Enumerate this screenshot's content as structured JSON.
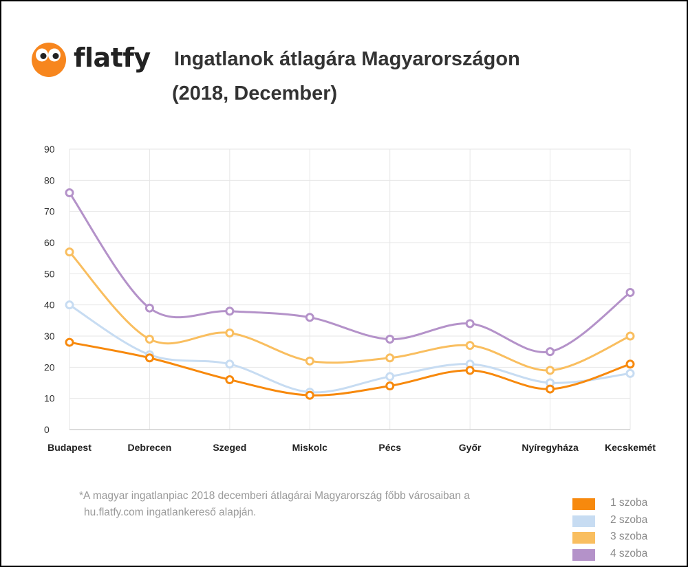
{
  "brand": {
    "logo_text": "flatfy"
  },
  "header": {
    "title": "Ingatlanok átlagára Magyarországon",
    "subtitle": "(2018, December)"
  },
  "chart_data": {
    "type": "line",
    "title": "Ingatlanok átlagára Magyarországon",
    "subtitle": "(2018, December)",
    "categories": [
      "Budapest",
      "Debrecen",
      "Szeged",
      "Miskolc",
      "Pécs",
      "Győr",
      "Nyíregyháza",
      "Kecskemét"
    ],
    "series": [
      {
        "name": "1 szoba",
        "color": "#f7890d",
        "values": [
          28,
          23,
          16,
          11,
          14,
          19,
          13,
          21
        ]
      },
      {
        "name": "2 szoba",
        "color": "#c7dcf2",
        "values": [
          40,
          24,
          21,
          12,
          17,
          21,
          15,
          18
        ]
      },
      {
        "name": "3 szoba",
        "color": "#f9be5f",
        "values": [
          57,
          29,
          31,
          22,
          23,
          27,
          19,
          30
        ]
      },
      {
        "name": "4 szoba",
        "color": "#b492c9",
        "values": [
          76,
          39,
          38,
          36,
          29,
          34,
          25,
          44
        ]
      }
    ],
    "yticks": [
      0,
      10,
      20,
      30,
      40,
      50,
      60,
      70,
      80,
      90
    ],
    "ylim": [
      0,
      90
    ],
    "xlabel": "",
    "ylabel": "",
    "grid": true,
    "legend_position": "bottom-right",
    "curve": "smooth"
  },
  "footnote": {
    "line1": "*A magyar ingatlanpiac 2018 decemberi átlagárai Magyarország főbb városaiban a",
    "line2": "hu.flatfy.com ingatlankereső alapján."
  },
  "colors": {
    "logo_orange": "#f7861e",
    "grid": "#e6e6e6",
    "axis": "#cfcfcf",
    "title": "#333333"
  }
}
